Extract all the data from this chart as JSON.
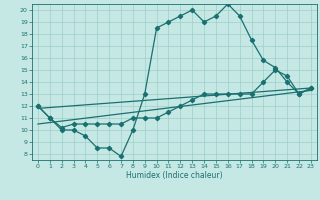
{
  "xlabel": "Humidex (Indice chaleur)",
  "xlim": [
    -0.5,
    23.5
  ],
  "ylim": [
    7.5,
    20.5
  ],
  "xticks": [
    0,
    1,
    2,
    3,
    4,
    5,
    6,
    7,
    8,
    9,
    10,
    11,
    12,
    13,
    14,
    15,
    16,
    17,
    18,
    19,
    20,
    21,
    22,
    23
  ],
  "yticks": [
    8,
    9,
    10,
    11,
    12,
    13,
    14,
    15,
    16,
    17,
    18,
    19,
    20
  ],
  "bg_color": "#c5e8e4",
  "grid_color": "#9dcfca",
  "line_color": "#1a7070",
  "line_width": 0.9,
  "marker": "D",
  "marker_size": 2.2,
  "series": [
    {
      "x": [
        0,
        1,
        2,
        3,
        4,
        5,
        6,
        7,
        8,
        9,
        10,
        11,
        12,
        13,
        14,
        15,
        16,
        17,
        18,
        19,
        20,
        21,
        22,
        23
      ],
      "y": [
        12,
        11,
        10,
        10,
        9.5,
        8.5,
        8.5,
        7.8,
        10,
        13,
        18.5,
        19,
        19.5,
        20,
        19,
        19.5,
        20.5,
        19.5,
        17.5,
        15.8,
        15.2,
        14,
        13,
        13.5
      ]
    },
    {
      "x": [
        0,
        1,
        2,
        3,
        4,
        5,
        6,
        7,
        8,
        9,
        10,
        11,
        12,
        13,
        14,
        15,
        16,
        17,
        18,
        19,
        20,
        21,
        22,
        23
      ],
      "y": [
        12,
        11,
        10.2,
        10.5,
        10.5,
        10.5,
        10.5,
        10.5,
        11,
        11,
        11,
        11.5,
        12,
        12.5,
        13,
        13,
        13,
        13,
        13,
        14,
        15,
        14.5,
        13,
        13.5
      ]
    },
    {
      "x": [
        0,
        23
      ],
      "y": [
        11.8,
        13.5
      ]
    },
    {
      "x": [
        0,
        23
      ],
      "y": [
        10.5,
        13.3
      ]
    }
  ]
}
